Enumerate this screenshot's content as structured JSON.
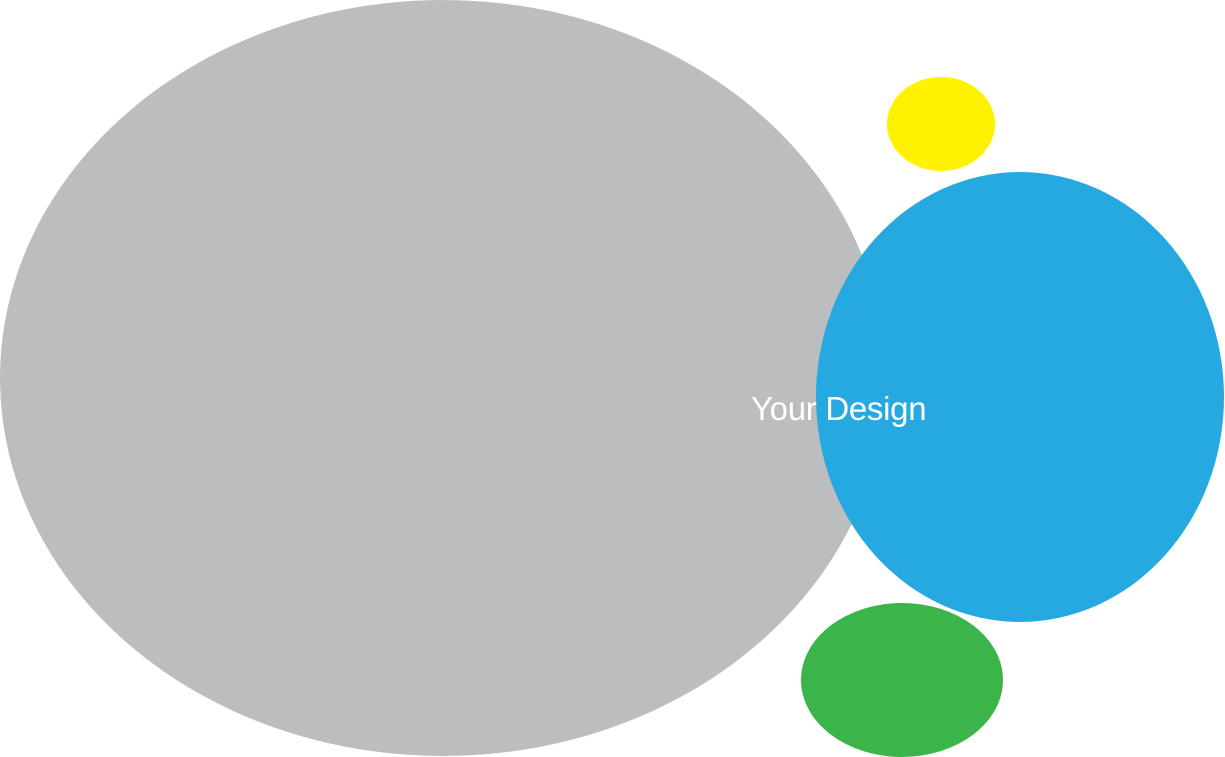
{
  "label": "Your Design",
  "colors": {
    "gray": "#bcbdbf",
    "blue": "#25a9e0",
    "yellow": "#fff200",
    "green": "#3bb44a",
    "text": "#ffffff"
  }
}
